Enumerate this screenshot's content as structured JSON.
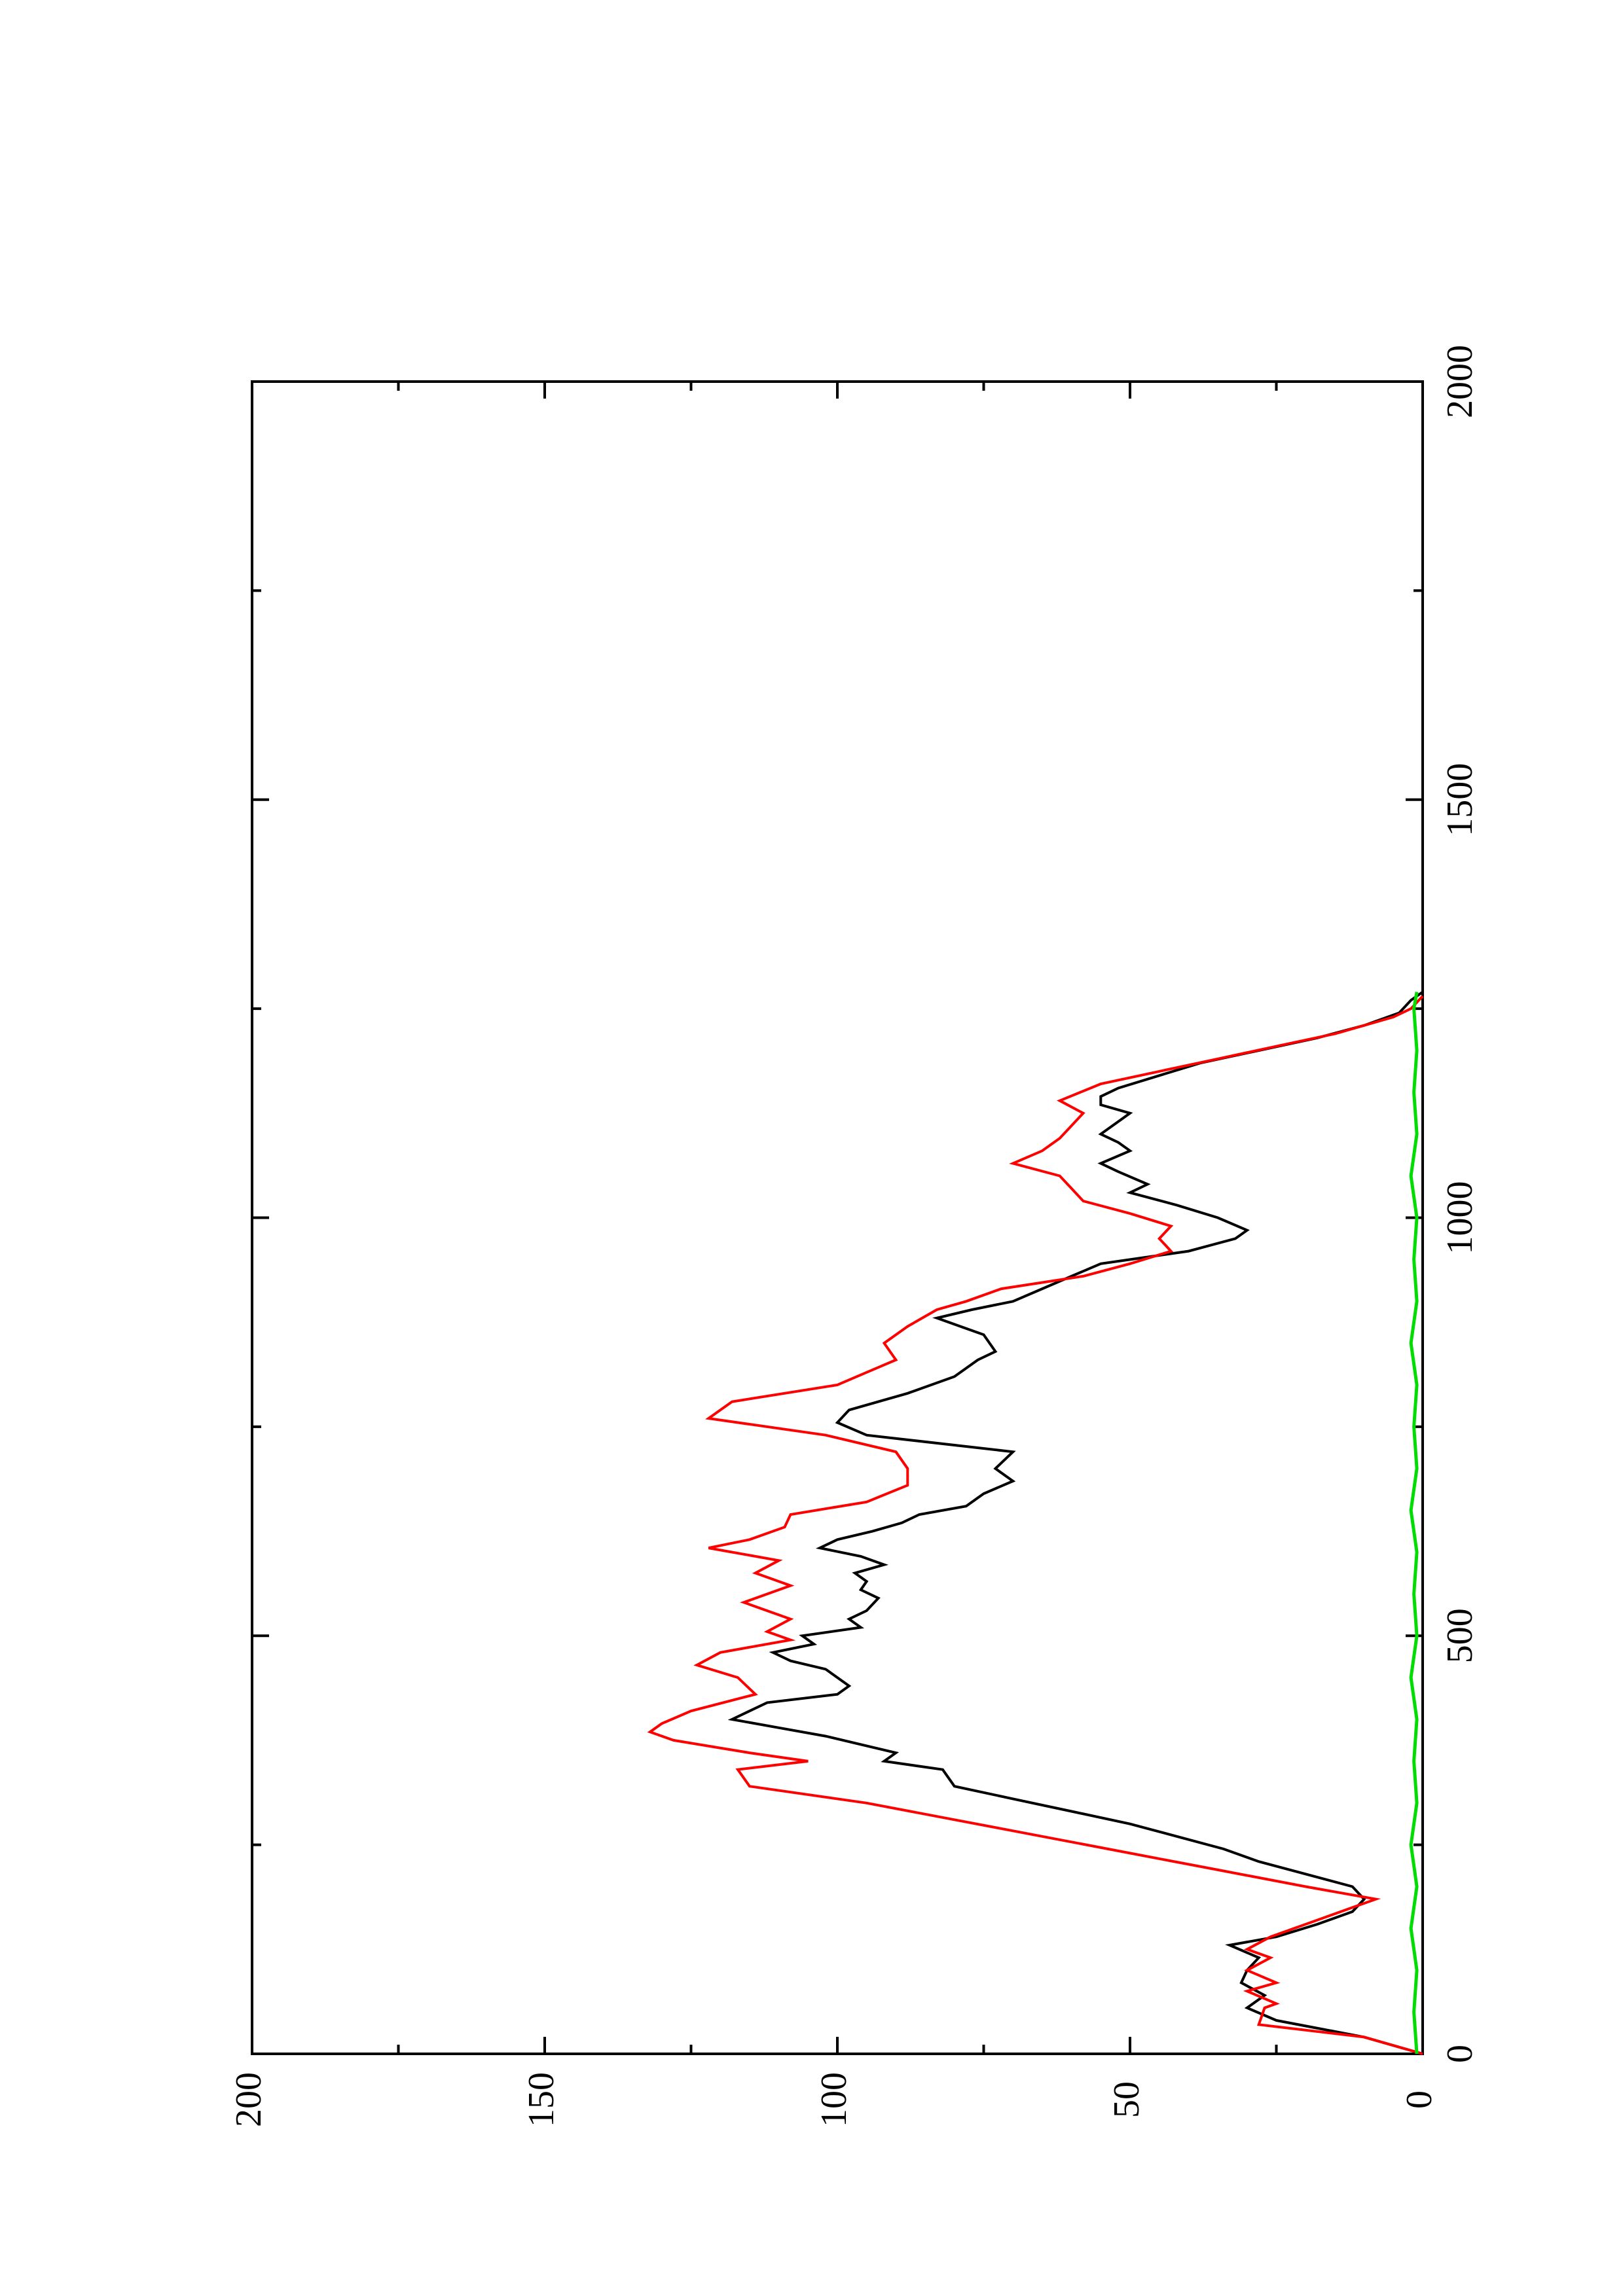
{
  "chart_data": {
    "type": "line",
    "title": "",
    "xlabel": "",
    "ylabel": "",
    "orientation": "rotated-90-counterclockwise",
    "xlim": [
      0,
      2000
    ],
    "ylim": [
      0,
      200
    ],
    "x_ticks": [
      0,
      500,
      1000,
      1500,
      2000
    ],
    "x_minor_ticks": [
      250,
      750,
      1250,
      1750
    ],
    "y_ticks": [
      0,
      50,
      100,
      150,
      200
    ],
    "y_minor_ticks": [
      25,
      75,
      125,
      175
    ],
    "x_tick_labels": [
      "0",
      "500",
      "1000",
      "1500",
      "2000"
    ],
    "y_tick_labels": [
      "0",
      "50",
      "100",
      "150",
      "200"
    ],
    "grid": false,
    "legend": "none",
    "series": [
      {
        "color": "#000000",
        "points": [
          [
            0,
            0
          ],
          [
            20,
            10
          ],
          [
            40,
            25
          ],
          [
            55,
            30
          ],
          [
            70,
            27
          ],
          [
            85,
            31
          ],
          [
            100,
            30
          ],
          [
            115,
            28
          ],
          [
            130,
            33
          ],
          [
            140,
            25
          ],
          [
            155,
            18
          ],
          [
            170,
            12
          ],
          [
            185,
            10
          ],
          [
            200,
            12
          ],
          [
            215,
            20
          ],
          [
            230,
            28
          ],
          [
            245,
            34
          ],
          [
            260,
            42
          ],
          [
            275,
            50
          ],
          [
            290,
            60
          ],
          [
            305,
            70
          ],
          [
            320,
            80
          ],
          [
            340,
            82
          ],
          [
            350,
            92
          ],
          [
            360,
            90
          ],
          [
            380,
            102
          ],
          [
            390,
            110
          ],
          [
            400,
            118
          ],
          [
            410,
            115
          ],
          [
            420,
            112
          ],
          [
            430,
            100
          ],
          [
            440,
            98
          ],
          [
            460,
            102
          ],
          [
            470,
            108
          ],
          [
            480,
            111
          ],
          [
            490,
            104
          ],
          [
            500,
            106
          ],
          [
            510,
            96
          ],
          [
            520,
            98
          ],
          [
            530,
            95
          ],
          [
            545,
            93
          ],
          [
            555,
            96
          ],
          [
            565,
            95
          ],
          [
            575,
            97
          ],
          [
            585,
            92
          ],
          [
            595,
            96
          ],
          [
            605,
            103
          ],
          [
            615,
            100
          ],
          [
            625,
            94
          ],
          [
            635,
            89
          ],
          [
            645,
            86
          ],
          [
            655,
            78
          ],
          [
            670,
            75
          ],
          [
            685,
            70
          ],
          [
            700,
            73
          ],
          [
            720,
            70
          ],
          [
            740,
            95
          ],
          [
            755,
            100
          ],
          [
            770,
            98
          ],
          [
            790,
            88
          ],
          [
            810,
            80
          ],
          [
            830,
            76
          ],
          [
            840,
            73
          ],
          [
            860,
            75
          ],
          [
            880,
            83
          ],
          [
            890,
            77
          ],
          [
            900,
            70
          ],
          [
            915,
            65
          ],
          [
            930,
            60
          ],
          [
            945,
            55
          ],
          [
            960,
            40
          ],
          [
            975,
            32
          ],
          [
            985,
            30
          ],
          [
            1000,
            35
          ],
          [
            1015,
            42
          ],
          [
            1030,
            50
          ],
          [
            1040,
            47
          ],
          [
            1055,
            52
          ],
          [
            1065,
            55
          ],
          [
            1080,
            50
          ],
          [
            1090,
            52
          ],
          [
            1100,
            55
          ],
          [
            1115,
            52
          ],
          [
            1125,
            50
          ],
          [
            1135,
            55
          ],
          [
            1145,
            55
          ],
          [
            1155,
            52
          ],
          [
            1170,
            45
          ],
          [
            1185,
            38
          ],
          [
            1200,
            28
          ],
          [
            1215,
            18
          ],
          [
            1230,
            10
          ],
          [
            1245,
            4
          ],
          [
            1260,
            2
          ],
          [
            1270,
            0
          ]
        ]
      },
      {
        "color": "#ff0000",
        "points": [
          [
            0,
            0
          ],
          [
            20,
            10
          ],
          [
            35,
            28
          ],
          [
            55,
            27
          ],
          [
            60,
            25
          ],
          [
            75,
            30
          ],
          [
            85,
            25
          ],
          [
            100,
            30
          ],
          [
            115,
            26
          ],
          [
            125,
            30
          ],
          [
            140,
            26
          ],
          [
            160,
            18
          ],
          [
            175,
            12
          ],
          [
            185,
            8
          ],
          [
            200,
            20
          ],
          [
            220,
            35
          ],
          [
            240,
            50
          ],
          [
            260,
            65
          ],
          [
            280,
            80
          ],
          [
            300,
            95
          ],
          [
            320,
            115
          ],
          [
            340,
            117
          ],
          [
            350,
            105
          ],
          [
            360,
            115
          ],
          [
            375,
            128
          ],
          [
            385,
            132
          ],
          [
            395,
            130
          ],
          [
            410,
            125
          ],
          [
            430,
            114
          ],
          [
            450,
            117
          ],
          [
            465,
            124
          ],
          [
            480,
            120
          ],
          [
            495,
            108
          ],
          [
            505,
            112
          ],
          [
            520,
            108
          ],
          [
            540,
            116
          ],
          [
            560,
            108
          ],
          [
            575,
            114
          ],
          [
            590,
            110
          ],
          [
            605,
            122
          ],
          [
            615,
            115
          ],
          [
            630,
            109
          ],
          [
            645,
            108
          ],
          [
            660,
            95
          ],
          [
            680,
            88
          ],
          [
            700,
            88
          ],
          [
            720,
            90
          ],
          [
            740,
            102
          ],
          [
            760,
            122
          ],
          [
            780,
            118
          ],
          [
            800,
            100
          ],
          [
            815,
            95
          ],
          [
            830,
            90
          ],
          [
            850,
            92
          ],
          [
            870,
            88
          ],
          [
            890,
            83
          ],
          [
            900,
            78
          ],
          [
            915,
            72
          ],
          [
            930,
            58
          ],
          [
            945,
            50
          ],
          [
            960,
            43
          ],
          [
            975,
            45
          ],
          [
            990,
            43
          ],
          [
            1005,
            50
          ],
          [
            1020,
            58
          ],
          [
            1035,
            60
          ],
          [
            1050,
            62
          ],
          [
            1065,
            70
          ],
          [
            1080,
            65
          ],
          [
            1095,
            62
          ],
          [
            1110,
            60
          ],
          [
            1125,
            58
          ],
          [
            1140,
            62
          ],
          [
            1160,
            55
          ],
          [
            1175,
            45
          ],
          [
            1190,
            35
          ],
          [
            1205,
            25
          ],
          [
            1220,
            15
          ],
          [
            1240,
            5
          ],
          [
            1250,
            2
          ],
          [
            1265,
            0
          ]
        ]
      },
      {
        "color": "#00dd00",
        "points": [
          [
            0,
            1
          ],
          [
            50,
            1.5
          ],
          [
            100,
            1
          ],
          [
            150,
            2
          ],
          [
            200,
            1
          ],
          [
            250,
            2
          ],
          [
            300,
            1
          ],
          [
            350,
            1.5
          ],
          [
            400,
            1
          ],
          [
            450,
            2
          ],
          [
            500,
            1
          ],
          [
            550,
            1.5
          ],
          [
            600,
            1
          ],
          [
            650,
            2
          ],
          [
            700,
            1
          ],
          [
            750,
            1.5
          ],
          [
            800,
            1
          ],
          [
            850,
            2
          ],
          [
            900,
            1
          ],
          [
            950,
            1.5
          ],
          [
            1000,
            1
          ],
          [
            1050,
            2
          ],
          [
            1100,
            1
          ],
          [
            1150,
            1.5
          ],
          [
            1200,
            1
          ],
          [
            1250,
            1.5
          ],
          [
            1270,
            1
          ]
        ]
      }
    ]
  }
}
